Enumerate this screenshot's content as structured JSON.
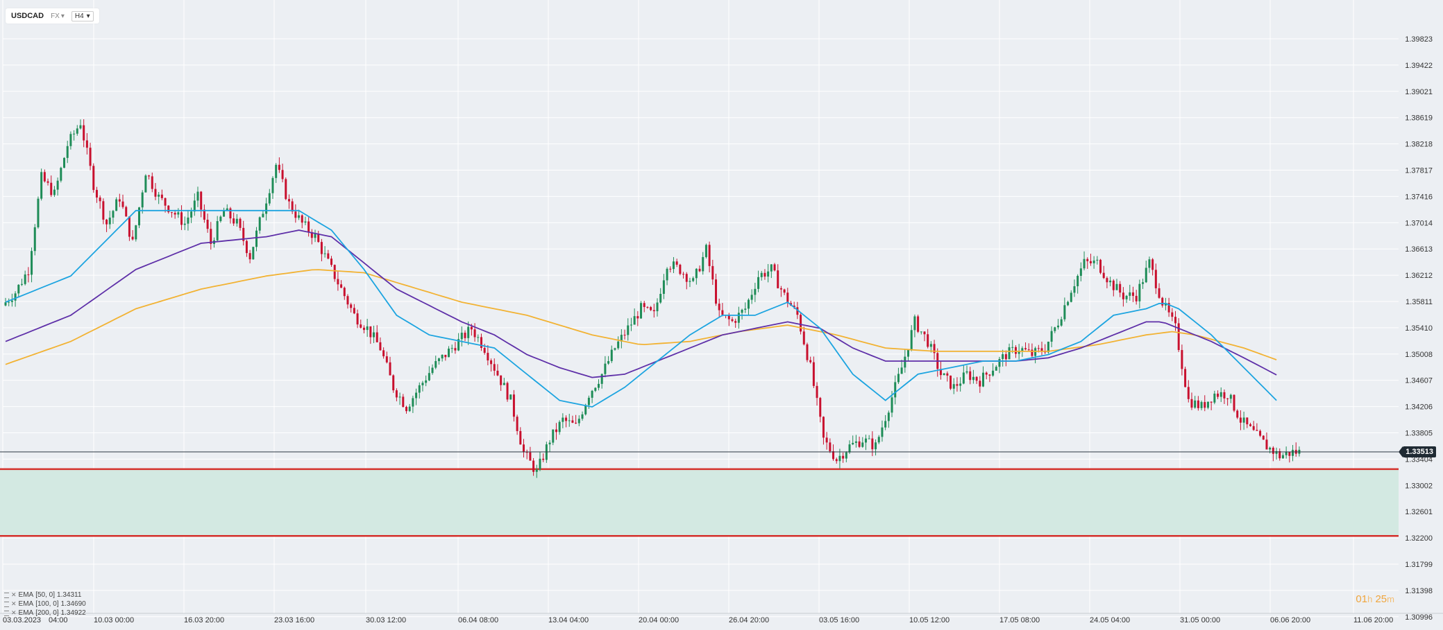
{
  "toolbar": {
    "symbol": "USDCAD",
    "market": "FX",
    "timeframe": "H4"
  },
  "legend": [
    {
      "label": "EMA",
      "params": "[50, 0]",
      "value": "1.34311"
    },
    {
      "label": "EMA",
      "params": "[100, 0]",
      "value": "1.34690"
    },
    {
      "label": "EMA",
      "params": "[200, 0]",
      "value": "1.34922"
    }
  ],
  "timer": {
    "hours": "01",
    "h_unit": "h",
    "minutes": "25",
    "m_unit": "m"
  },
  "colors": {
    "background": "#eceff3",
    "up_candle": "#1e8c57",
    "down_candle": "#c8102e",
    "ema50": "#1ca4e0",
    "ema100": "#5e2fa8",
    "ema200": "#f2b232",
    "zone_fill": "#d3e9e2",
    "zone_border": "#d5302b",
    "price_line": "#2a3640"
  },
  "chart_data": {
    "type": "candlestick",
    "symbol": "USDCAD",
    "timeframe": "H4",
    "y_ticks": [
      "1.39823",
      "1.39422",
      "1.39021",
      "1.38619",
      "1.38218",
      "1.37817",
      "1.37416",
      "1.37014",
      "1.36613",
      "1.36212",
      "1.35811",
      "1.35410",
      "1.35008",
      "1.34607",
      "1.34206",
      "1.33805",
      "1.33404",
      "1.33002",
      "1.32601",
      "1.32200",
      "1.31799",
      "1.31398",
      "1.30996"
    ],
    "ylim": [
      1.3075,
      1.4004
    ],
    "x_ticks": [
      "03.03.2023",
      "04:00",
      "10.03  00:00",
      "16.03  20:00",
      "23.03  16:00",
      "30.03  12:00",
      "06.04  08:00",
      "13.04  04:00",
      "20.04  00:00",
      "26.04  20:00",
      "03.05  16:00",
      "10.05  12:00",
      "17.05  08:00",
      "24.05  04:00",
      "31.05  00:00",
      "06.06  20:00",
      "11.06  20:00"
    ],
    "current_price": "1.33513",
    "support_zone": {
      "top": 1.3325,
      "bottom": 1.3223
    },
    "price_path": [
      [
        0,
        1.3575
      ],
      [
        4,
        1.3595
      ],
      [
        8,
        1.363
      ],
      [
        12,
        1.377
      ],
      [
        16,
        1.3745
      ],
      [
        20,
        1.382
      ],
      [
        24,
        1.3855
      ],
      [
        28,
        1.376
      ],
      [
        32,
        1.37
      ],
      [
        36,
        1.374
      ],
      [
        40,
        1.367
      ],
      [
        44,
        1.378
      ],
      [
        48,
        1.374
      ],
      [
        52,
        1.372
      ],
      [
        56,
        1.37
      ],
      [
        60,
        1.374
      ],
      [
        64,
        1.367
      ],
      [
        68,
        1.372
      ],
      [
        72,
        1.37
      ],
      [
        76,
        1.365
      ],
      [
        80,
        1.372
      ],
      [
        84,
        1.379
      ],
      [
        88,
        1.373
      ],
      [
        92,
        1.37
      ],
      [
        96,
        1.368
      ],
      [
        100,
        1.364
      ],
      [
        104,
        1.36
      ],
      [
        108,
        1.356
      ],
      [
        112,
        1.354
      ],
      [
        116,
        1.351
      ],
      [
        120,
        1.345
      ],
      [
        124,
        1.342
      ],
      [
        128,
        1.345
      ],
      [
        132,
        1.348
      ],
      [
        136,
        1.35
      ],
      [
        140,
        1.352
      ],
      [
        144,
        1.354
      ],
      [
        148,
        1.351
      ],
      [
        152,
        1.347
      ],
      [
        156,
        1.343
      ],
      [
        160,
        1.335
      ],
      [
        164,
        1.332
      ],
      [
        168,
        1.337
      ],
      [
        172,
        1.34
      ],
      [
        176,
        1.339
      ],
      [
        180,
        1.344
      ],
      [
        184,
        1.347
      ],
      [
        188,
        1.351
      ],
      [
        192,
        1.354
      ],
      [
        196,
        1.357
      ],
      [
        200,
        1.356
      ],
      [
        204,
        1.364
      ],
      [
        208,
        1.363
      ],
      [
        212,
        1.361
      ],
      [
        216,
        1.366
      ],
      [
        220,
        1.356
      ],
      [
        224,
        1.355
      ],
      [
        228,
        1.357
      ],
      [
        232,
        1.362
      ],
      [
        236,
        1.363
      ],
      [
        240,
        1.359
      ],
      [
        244,
        1.356
      ],
      [
        248,
        1.348
      ],
      [
        252,
        1.337
      ],
      [
        256,
        1.334
      ],
      [
        260,
        1.336
      ],
      [
        264,
        1.337
      ],
      [
        268,
        1.336
      ],
      [
        272,
        1.342
      ],
      [
        276,
        1.348
      ],
      [
        280,
        1.355
      ],
      [
        284,
        1.352
      ],
      [
        288,
        1.347
      ],
      [
        292,
        1.345
      ],
      [
        296,
        1.347
      ],
      [
        300,
        1.346
      ],
      [
        304,
        1.348
      ],
      [
        308,
        1.35
      ],
      [
        312,
        1.351
      ],
      [
        316,
        1.35
      ],
      [
        320,
        1.351
      ],
      [
        324,
        1.355
      ],
      [
        328,
        1.36
      ],
      [
        332,
        1.364
      ],
      [
        336,
        1.364
      ],
      [
        340,
        1.361
      ],
      [
        344,
        1.359
      ],
      [
        348,
        1.359
      ],
      [
        352,
        1.364
      ],
      [
        356,
        1.358
      ],
      [
        360,
        1.354
      ],
      [
        364,
        1.343
      ],
      [
        368,
        1.342
      ],
      [
        372,
        1.344
      ],
      [
        376,
        1.344
      ],
      [
        380,
        1.34
      ],
      [
        384,
        1.338
      ],
      [
        388,
        1.336
      ],
      [
        392,
        1.3345
      ],
      [
        396,
        1.3351
      ]
    ],
    "ema50_path": [
      [
        0,
        1.358
      ],
      [
        20,
        1.362
      ],
      [
        40,
        1.372
      ],
      [
        60,
        1.372
      ],
      [
        80,
        1.372
      ],
      [
        90,
        1.372
      ],
      [
        100,
        1.369
      ],
      [
        110,
        1.363
      ],
      [
        120,
        1.356
      ],
      [
        130,
        1.353
      ],
      [
        140,
        1.352
      ],
      [
        150,
        1.351
      ],
      [
        160,
        1.347
      ],
      [
        170,
        1.343
      ],
      [
        180,
        1.342
      ],
      [
        190,
        1.345
      ],
      [
        200,
        1.349
      ],
      [
        210,
        1.353
      ],
      [
        220,
        1.356
      ],
      [
        230,
        1.356
      ],
      [
        240,
        1.358
      ],
      [
        250,
        1.354
      ],
      [
        260,
        1.347
      ],
      [
        270,
        1.343
      ],
      [
        280,
        1.347
      ],
      [
        290,
        1.348
      ],
      [
        300,
        1.349
      ],
      [
        310,
        1.349
      ],
      [
        320,
        1.35
      ],
      [
        330,
        1.352
      ],
      [
        340,
        1.356
      ],
      [
        350,
        1.357
      ],
      [
        355,
        1.358
      ],
      [
        360,
        1.357
      ],
      [
        370,
        1.353
      ],
      [
        380,
        1.348
      ],
      [
        390,
        1.343
      ]
    ],
    "ema100_path": [
      [
        0,
        1.352
      ],
      [
        20,
        1.356
      ],
      [
        40,
        1.363
      ],
      [
        60,
        1.367
      ],
      [
        80,
        1.368
      ],
      [
        90,
        1.369
      ],
      [
        100,
        1.368
      ],
      [
        110,
        1.364
      ],
      [
        120,
        1.36
      ],
      [
        140,
        1.355
      ],
      [
        150,
        1.353
      ],
      [
        160,
        1.35
      ],
      [
        170,
        1.348
      ],
      [
        180,
        1.3465
      ],
      [
        190,
        1.347
      ],
      [
        200,
        1.349
      ],
      [
        210,
        1.351
      ],
      [
        220,
        1.353
      ],
      [
        230,
        1.354
      ],
      [
        240,
        1.355
      ],
      [
        250,
        1.354
      ],
      [
        260,
        1.351
      ],
      [
        270,
        1.349
      ],
      [
        280,
        1.349
      ],
      [
        290,
        1.349
      ],
      [
        300,
        1.349
      ],
      [
        310,
        1.349
      ],
      [
        320,
        1.3495
      ],
      [
        330,
        1.351
      ],
      [
        340,
        1.353
      ],
      [
        350,
        1.355
      ],
      [
        355,
        1.355
      ],
      [
        360,
        1.354
      ],
      [
        370,
        1.352
      ],
      [
        380,
        1.3495
      ],
      [
        390,
        1.3469
      ]
    ],
    "ema200_path": [
      [
        0,
        1.3485
      ],
      [
        20,
        1.352
      ],
      [
        40,
        1.357
      ],
      [
        60,
        1.36
      ],
      [
        80,
        1.362
      ],
      [
        95,
        1.363
      ],
      [
        110,
        1.3625
      ],
      [
        120,
        1.361
      ],
      [
        140,
        1.358
      ],
      [
        160,
        1.356
      ],
      [
        180,
        1.353
      ],
      [
        195,
        1.3515
      ],
      [
        210,
        1.352
      ],
      [
        225,
        1.3535
      ],
      [
        240,
        1.3545
      ],
      [
        255,
        1.353
      ],
      [
        270,
        1.351
      ],
      [
        285,
        1.3505
      ],
      [
        300,
        1.3505
      ],
      [
        320,
        1.3505
      ],
      [
        335,
        1.3515
      ],
      [
        350,
        1.353
      ],
      [
        358,
        1.3535
      ],
      [
        365,
        1.353
      ],
      [
        380,
        1.351
      ],
      [
        390,
        1.3492
      ]
    ]
  }
}
